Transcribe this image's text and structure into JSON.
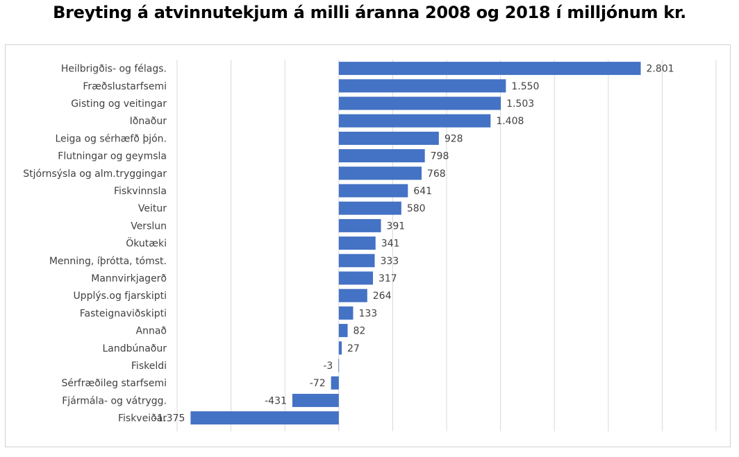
{
  "chart_data": {
    "type": "bar",
    "orientation": "horizontal",
    "title": "Breyting á atvinnutekjum á milli áranna 2008 og 2018 í milljónum kr.",
    "categories": [
      "Heilbrigðis- og félags.",
      "Fræðslustarfsemi",
      "Gisting og veitingar",
      "Iðnaður",
      "Leiga og sérhæfð þjón.",
      "Flutningar og geymsla",
      "Stjórnsýsla og alm.tryggingar",
      "Fiskvinnsla",
      "Veitur",
      "Verslun",
      "Ökutæki",
      "Menning, íþrótta, tómst.",
      "Mannvirkjagerð",
      "Upplýs.og fjarskipti",
      "Fasteignaviðskipti",
      "Annað",
      "Landbúnaður",
      "Fiskeldi",
      "Sérfræðileg starfsemi",
      "Fjármála- og vátrygg.",
      "Fiskveiðar"
    ],
    "values": [
      2801,
      1550,
      1503,
      1408,
      928,
      798,
      768,
      641,
      580,
      391,
      341,
      333,
      317,
      264,
      133,
      82,
      27,
      -3,
      -72,
      -431,
      -1375
    ],
    "data_labels": [
      "2.801",
      "1.550",
      "1.503",
      "1.408",
      "928",
      "798",
      "768",
      "641",
      "580",
      "391",
      "341",
      "333",
      "317",
      "264",
      "133",
      "82",
      "27",
      "-3",
      "-72",
      "-431",
      "-1.375"
    ],
    "xlim": [
      -1500,
      3500
    ],
    "x_gridlines": [
      -1500,
      -1000,
      -500,
      0,
      500,
      1000,
      1500,
      2000,
      2500,
      3000,
      3500
    ],
    "x_tick_labels_shown": false,
    "grid": true,
    "legend": "none",
    "bar_color": "#4472c4",
    "gridline_color": "#d9d9d9"
  }
}
